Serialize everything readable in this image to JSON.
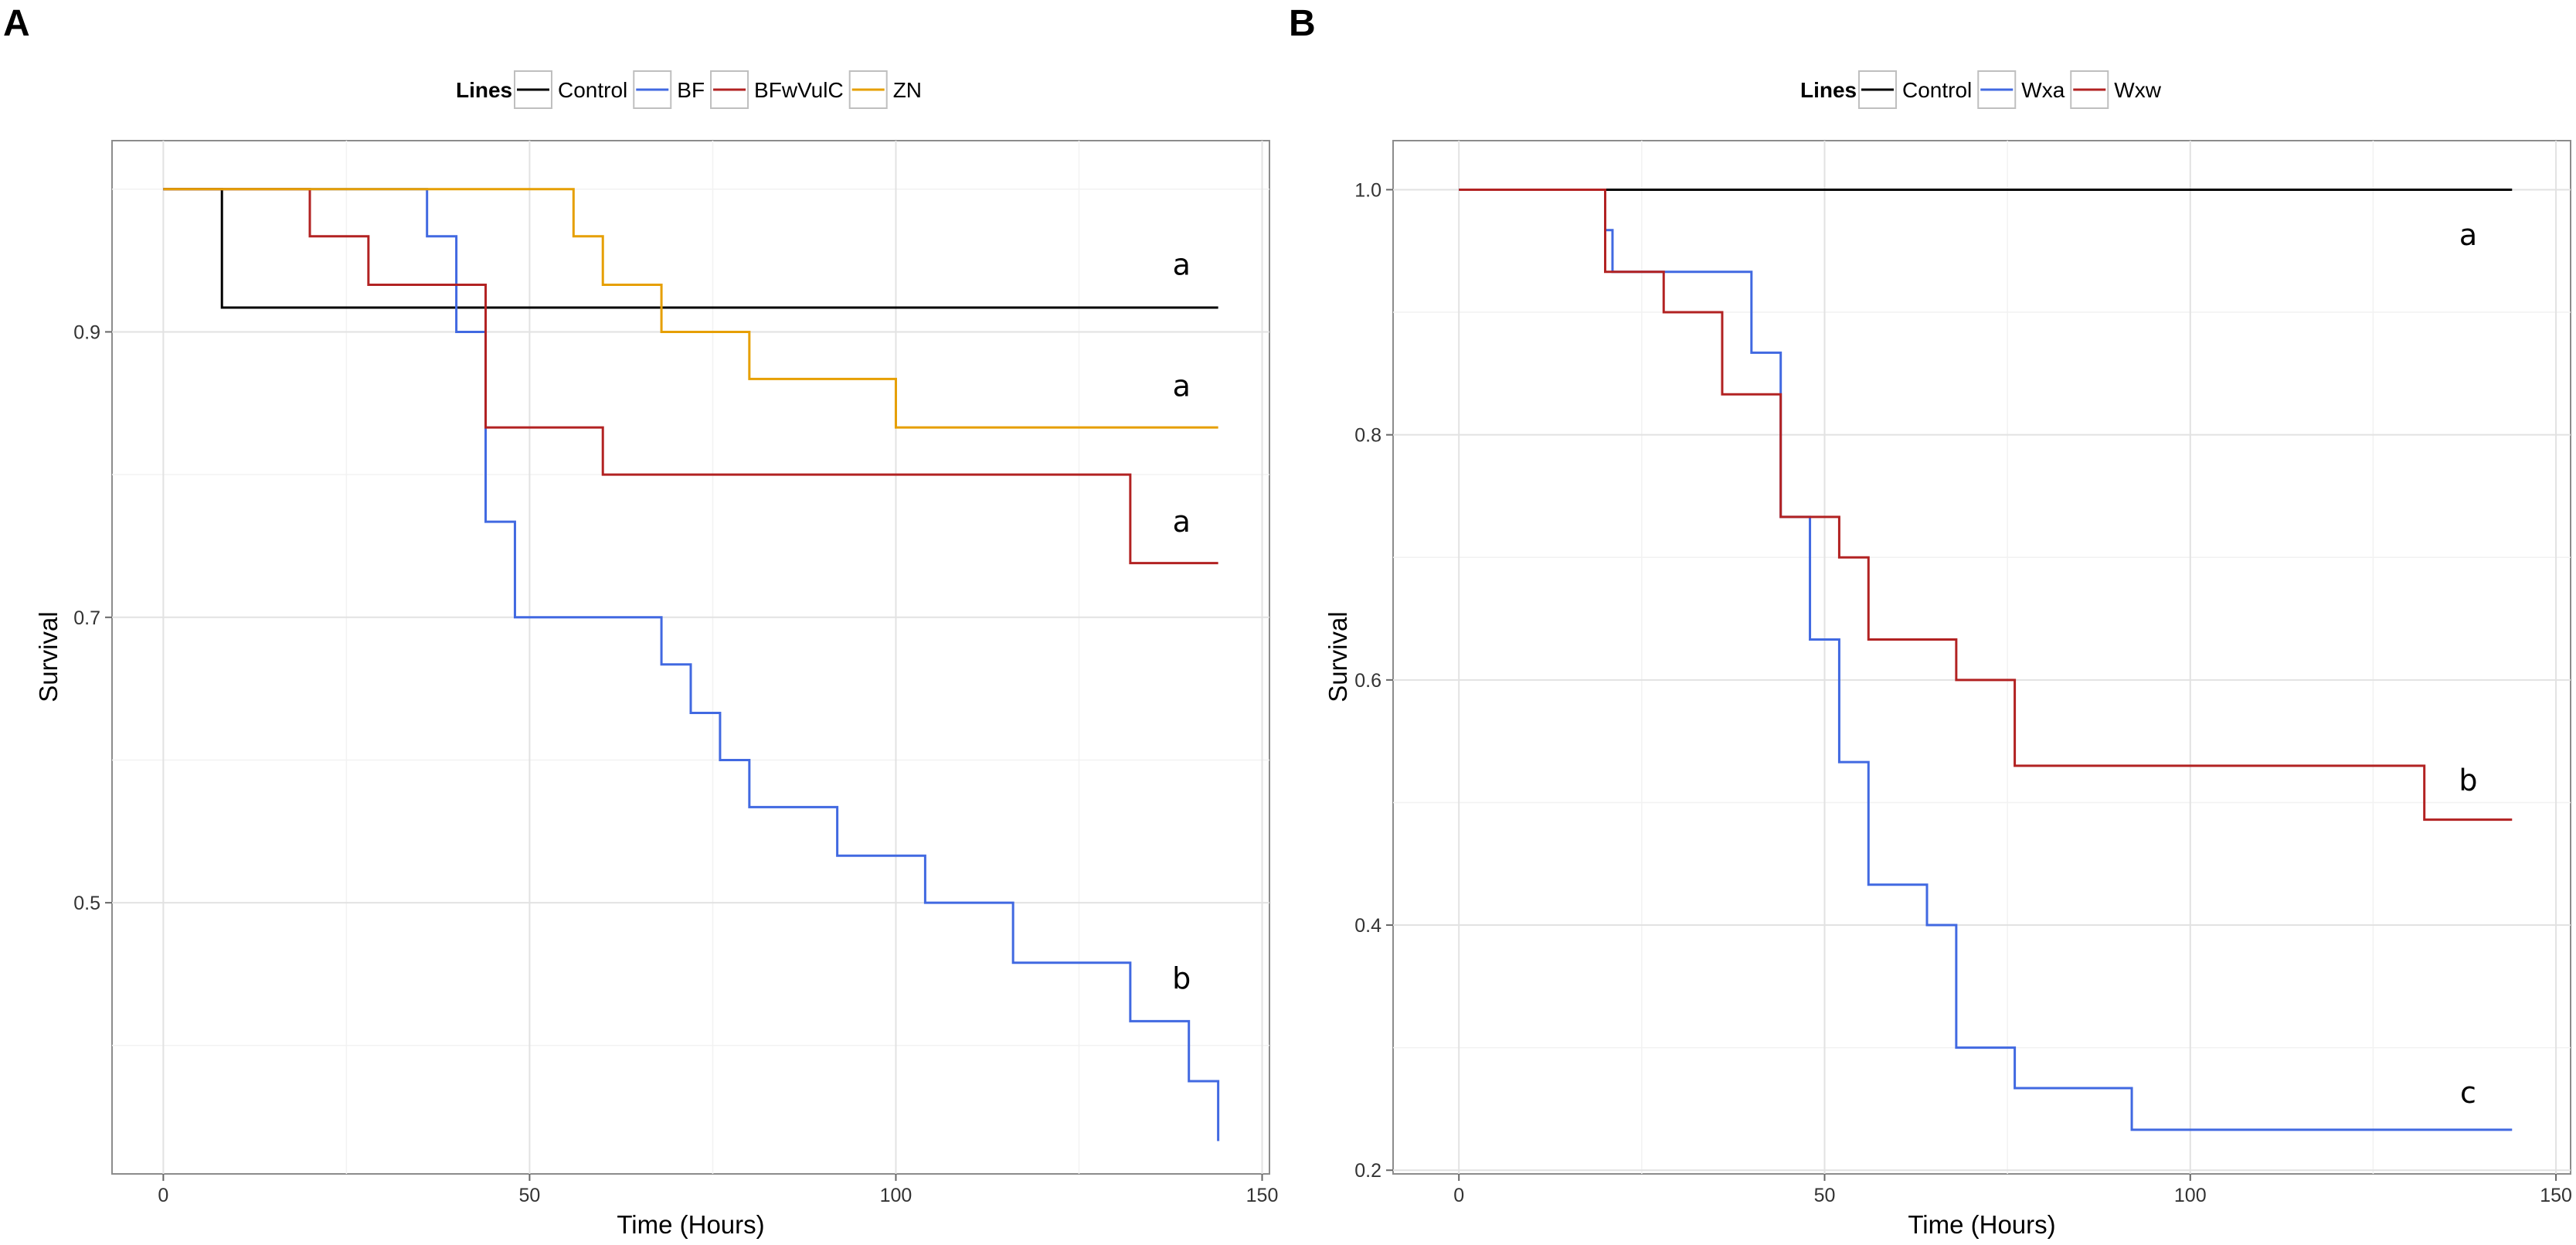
{
  "chart_data": [
    {
      "panel_label": "A",
      "type": "line",
      "step": true,
      "legend": {
        "title": "Lines",
        "position": "top"
      },
      "xlabel": "Time (Hours)",
      "ylabel": "Survival",
      "xlim": [
        -7,
        151
      ],
      "ylim": [
        0.31,
        1.034
      ],
      "xticks": [
        0,
        50,
        100,
        150
      ],
      "yticks": [
        0.5,
        0.7,
        0.9
      ],
      "ytick_labels": [
        "0.5",
        "0.7",
        "0.9"
      ],
      "grid": true,
      "series": [
        {
          "name": "Control",
          "color": "#000000",
          "x": [
            0,
            8,
            144
          ],
          "y": [
            1.0,
            0.917,
            0.917
          ]
        },
        {
          "name": "BF",
          "color": "#4169e1",
          "x": [
            0,
            36,
            40,
            44,
            48,
            68,
            72,
            76,
            80,
            92,
            104,
            116,
            132,
            140,
            144
          ],
          "y": [
            1.0,
            0.967,
            0.9,
            0.767,
            0.7,
            0.667,
            0.633,
            0.6,
            0.567,
            0.533,
            0.5,
            0.458,
            0.417,
            0.375,
            0.333
          ]
        },
        {
          "name": "BFwVulC",
          "color": "#b22222",
          "x": [
            0,
            20,
            28,
            44,
            60,
            132,
            144
          ],
          "y": [
            1.0,
            0.967,
            0.933,
            0.833,
            0.8,
            0.738,
            0.738
          ]
        },
        {
          "name": "ZN",
          "color": "#e69f00",
          "x": [
            0,
            56,
            60,
            68,
            80,
            100,
            144
          ],
          "y": [
            1.0,
            0.967,
            0.933,
            0.9,
            0.867,
            0.833,
            0.833
          ]
        }
      ],
      "annotations": [
        {
          "text": "a",
          "x": 139,
          "y": 0.94
        },
        {
          "text": "a",
          "x": 139,
          "y": 0.855
        },
        {
          "text": "a",
          "x": 139,
          "y": 0.76
        },
        {
          "text": "b",
          "x": 139,
          "y": 0.44
        }
      ]
    },
    {
      "panel_label": "B",
      "type": "line",
      "step": true,
      "legend": {
        "title": "Lines",
        "position": "top"
      },
      "xlabel": "Time (Hours)",
      "ylabel": "Survival",
      "xlim": [
        -9,
        152
      ],
      "ylim": [
        0.197,
        1.04
      ],
      "xticks": [
        0,
        50,
        100,
        150
      ],
      "yticks": [
        0.2,
        0.4,
        0.6,
        0.8,
        1.0
      ],
      "ytick_labels": [
        "0.2",
        "0.4",
        "0.6",
        "0.8",
        "1.0"
      ],
      "grid": true,
      "series": [
        {
          "name": "Control",
          "color": "#000000",
          "x": [
            0,
            144
          ],
          "y": [
            1.0,
            1.0
          ]
        },
        {
          "name": "Wxa",
          "color": "#4169e1",
          "x": [
            0,
            20,
            21,
            40,
            44,
            48,
            52,
            56,
            64,
            68,
            76,
            92,
            144
          ],
          "y": [
            1.0,
            0.967,
            0.933,
            0.867,
            0.733,
            0.633,
            0.533,
            0.433,
            0.4,
            0.3,
            0.267,
            0.233,
            0.233
          ]
        },
        {
          "name": "Wxw",
          "color": "#b22222",
          "x": [
            0,
            20,
            28,
            36,
            44,
            52,
            56,
            68,
            76,
            132,
            144
          ],
          "y": [
            1.0,
            0.933,
            0.9,
            0.833,
            0.733,
            0.7,
            0.633,
            0.6,
            0.53,
            0.486,
            0.486
          ]
        }
      ],
      "annotations": [
        {
          "text": "a",
          "x": 138,
          "y": 0.955
        },
        {
          "text": "b",
          "x": 138,
          "y": 0.51
        },
        {
          "text": "c",
          "x": 138,
          "y": 0.255
        }
      ]
    }
  ]
}
